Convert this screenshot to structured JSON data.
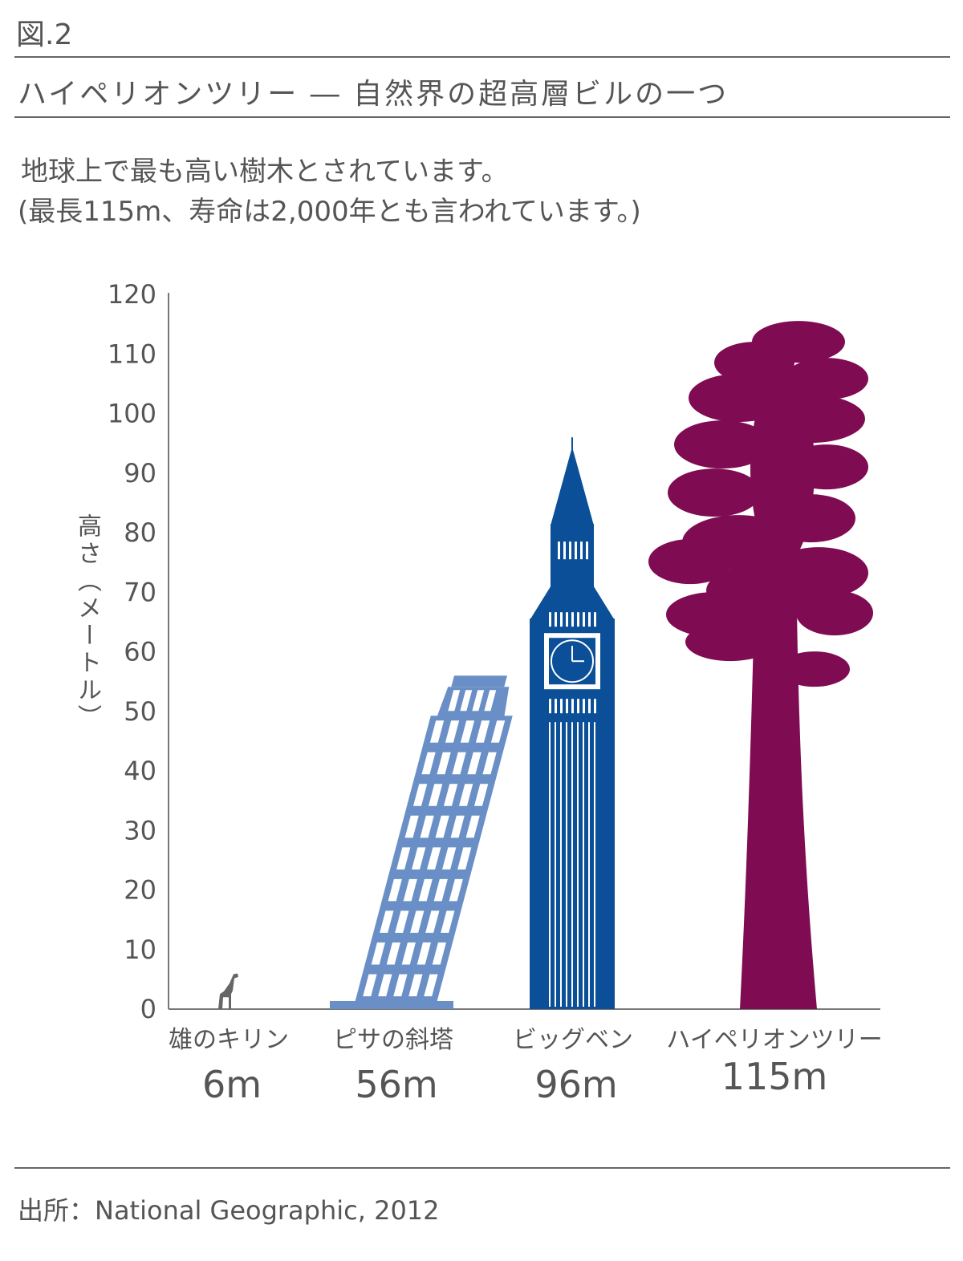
{
  "figure_label": "図.2",
  "headline": "ハイペリオンツリー ― 自然界の超高層ビルの一つ",
  "description": {
    "line1": "地球上で最も高い樹木とされています。",
    "line2": "(最長115m、寿命は2,000年とも言われています。)"
  },
  "source": "出所：National Geographic, 2012",
  "colors": {
    "giraffe": "#666666",
    "pisa": "#6a8fc6",
    "big_ben": "#0a4f97",
    "hyperion": "#7f0b52",
    "axis": "#777777"
  },
  "chart_data": {
    "type": "bar",
    "ylabel": "高さ（メートル）",
    "ylim": [
      0,
      120
    ],
    "yticks": [
      0,
      10,
      20,
      30,
      40,
      50,
      60,
      70,
      80,
      90,
      100,
      110,
      120
    ],
    "grid": false,
    "categories": [
      "雄のキリン",
      "ピサの斜塔",
      "ビッグベン",
      "ハイペリオンツリー"
    ],
    "values": [
      6,
      56,
      96,
      115
    ],
    "value_labels": [
      "6m",
      "56m",
      "96m",
      "115m"
    ],
    "icons": [
      "giraffe-icon",
      "leaning-tower-icon",
      "clock-tower-icon",
      "tree-icon"
    ]
  }
}
